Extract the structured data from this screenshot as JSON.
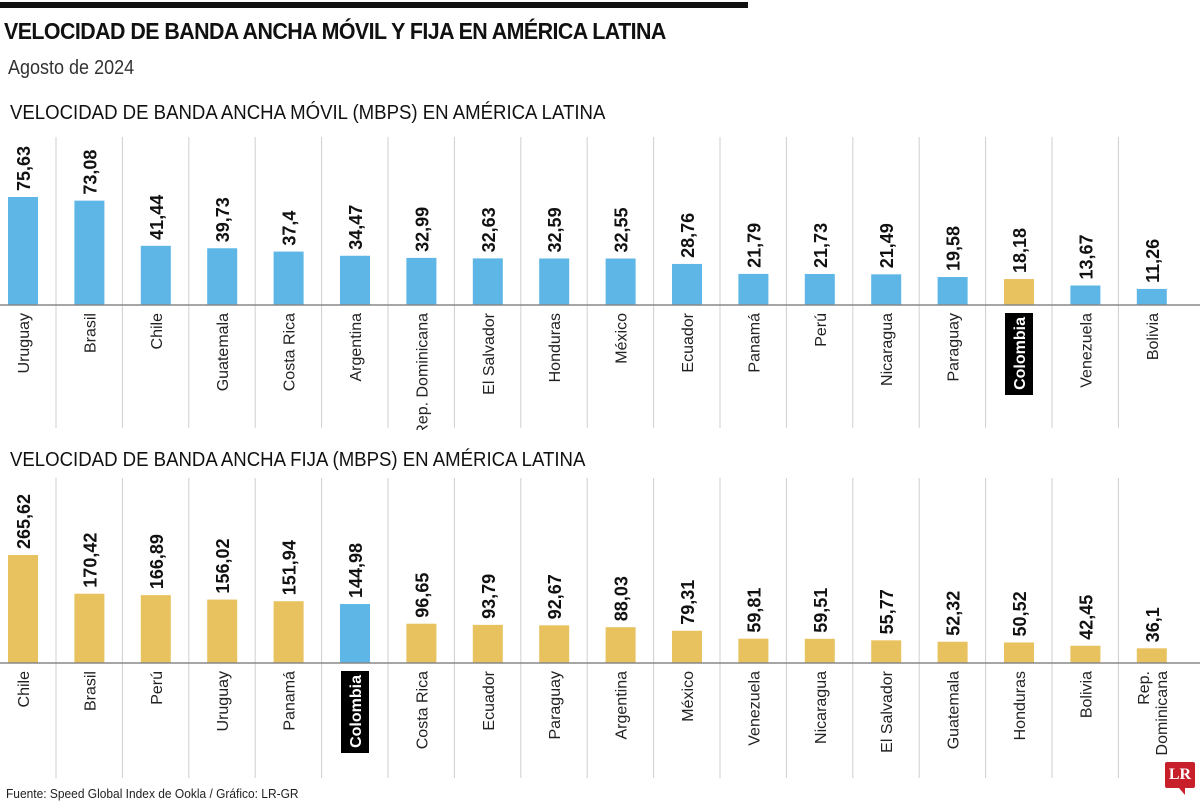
{
  "title": "VELOCIDAD DE BANDA ANCHA MÓVIL Y FIJA EN AMÉRICA LATINA",
  "subtitle": "Agosto de 2024",
  "source": "Fuente: Speed Global Index de Ookla / Gráfico: LR-GR",
  "logo": "LR",
  "colors": {
    "blue": "#5db6e6",
    "gold": "#e8c25e",
    "highlight_label_bg": "#000000"
  },
  "chart_data": [
    {
      "type": "bar",
      "title": "VELOCIDAD DE BANDA ANCHA MÓVIL (MBPS) EN AMÉRICA LATINA",
      "categories": [
        "Uruguay",
        "Brasil",
        "Chile",
        "Guatemala",
        "Costa Rica",
        "Argentina",
        "Rep. Dominicana",
        "El Salvador",
        "Honduras",
        "México",
        "Ecuador",
        "Panamá",
        "Perú",
        "Nicaragua",
        "Paraguay",
        "Colombia",
        "Venezuela",
        "Bolivia"
      ],
      "values": [
        75.63,
        73.08,
        41.44,
        39.73,
        37.4,
        34.47,
        32.99,
        32.63,
        32.59,
        32.55,
        28.76,
        21.79,
        21.73,
        21.49,
        19.58,
        18.18,
        13.67,
        11.26
      ],
      "value_labels": [
        "75,63",
        "73,08",
        "41,44",
        "39,73",
        "37,4",
        "34,47",
        "32,99",
        "32,63",
        "32,59",
        "32,55",
        "28,76",
        "21,79",
        "21,73",
        "21,49",
        "19,58",
        "18,18",
        "13,67",
        "11,26"
      ],
      "highlight": "Colombia",
      "bar_color": "#5db6e6",
      "highlight_color": "#e8c25e",
      "grid": false
    },
    {
      "type": "bar",
      "title": "VELOCIDAD DE BANDA ANCHA FIJA (MBPS) EN AMÉRICA LATINA",
      "categories": [
        "Chile",
        "Brasil",
        "Perú",
        "Uruguay",
        "Panamá",
        "Colombia",
        "Costa Rica",
        "Ecuador",
        "Paraguay",
        "Argentina",
        "México",
        "Venezuela",
        "Nicaragua",
        "El Salvador",
        "Guatemala",
        "Honduras",
        "Bolivia",
        "Rep. Dominicana"
      ],
      "values": [
        265.62,
        170.42,
        166.89,
        156.02,
        151.94,
        144.98,
        96.65,
        93.79,
        92.67,
        88.03,
        79.31,
        59.81,
        59.51,
        55.77,
        52.32,
        50.52,
        42.45,
        36.1
      ],
      "value_labels": [
        "265,62",
        "170,42",
        "166,89",
        "156,02",
        "151,94",
        "144,98",
        "96,65",
        "93,79",
        "92,67",
        "88,03",
        "79,31",
        "59,81",
        "59,51",
        "55,77",
        "52,32",
        "50,52",
        "42,45",
        "36,1"
      ],
      "highlight": "Colombia",
      "bar_color": "#e8c25e",
      "highlight_color": "#5db6e6",
      "grid": false
    }
  ]
}
